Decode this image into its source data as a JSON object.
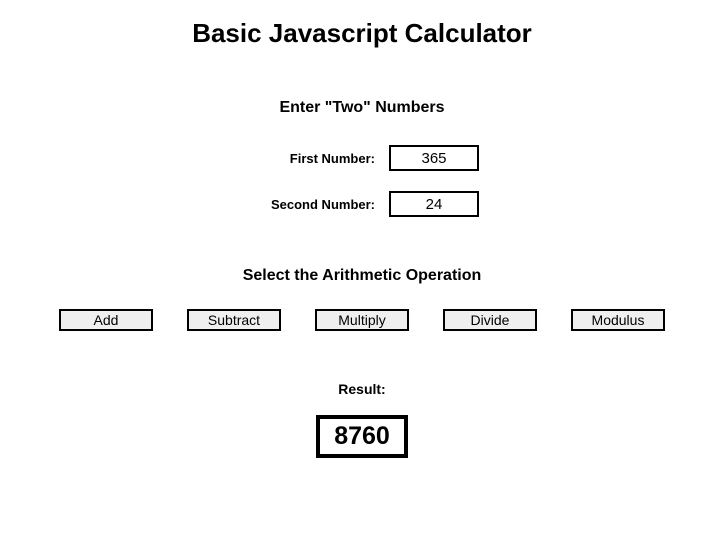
{
  "title": "Basic Javascript Calculator",
  "inputs": {
    "heading": "Enter \"Two\" Numbers",
    "first": {
      "label": "First Number:",
      "value": "365"
    },
    "second": {
      "label": "Second Number:",
      "value": "24"
    }
  },
  "operations": {
    "heading": "Select the Arithmetic Operation",
    "buttons": {
      "add": "Add",
      "subtract": "Subtract",
      "multiply": "Multiply",
      "divide": "Divide",
      "modulus": "Modulus"
    }
  },
  "result": {
    "label": "Result:",
    "value": "8760"
  }
}
